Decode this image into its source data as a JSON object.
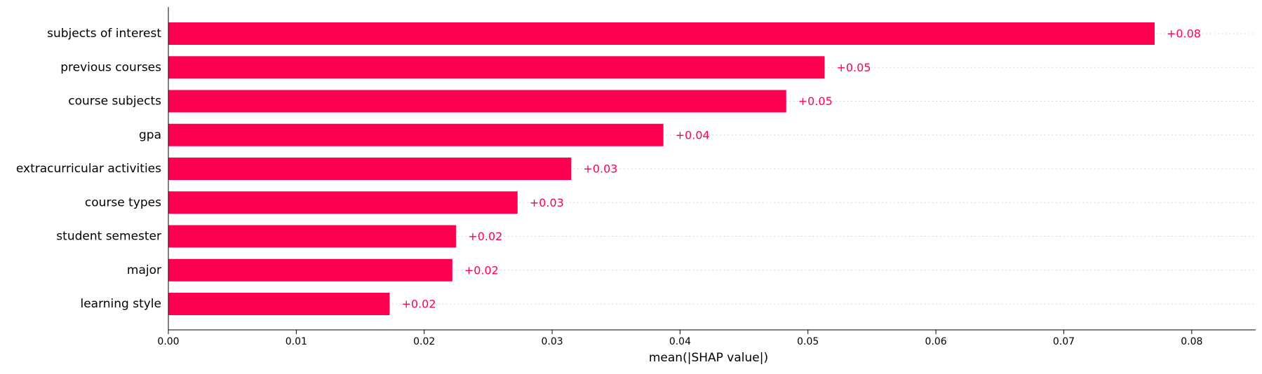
{
  "chart_data": {
    "type": "bar",
    "orientation": "horizontal",
    "title": "",
    "xlabel": "mean(|SHAP value|)",
    "ylabel": "",
    "xlim": [
      0,
      0.085
    ],
    "xticks": [
      0.0,
      0.01,
      0.02,
      0.03,
      0.04,
      0.05,
      0.06,
      0.07,
      0.08
    ],
    "xtick_labels": [
      "0.00",
      "0.01",
      "0.02",
      "0.03",
      "0.04",
      "0.05",
      "0.06",
      "0.07",
      "0.08"
    ],
    "categories": [
      "subjects of interest",
      "previous courses",
      "course subjects",
      "gpa",
      "extracurricular activities",
      "course types",
      "student semester",
      "major",
      "learning style"
    ],
    "values": [
      0.0771,
      0.0513,
      0.0483,
      0.0387,
      0.0315,
      0.0273,
      0.0225,
      0.0222,
      0.0173
    ],
    "value_labels": [
      "+0.08",
      "+0.05",
      "+0.05",
      "+0.04",
      "+0.03",
      "+0.03",
      "+0.02",
      "+0.02",
      "+0.02"
    ],
    "grid": "dotted horizontal guide lines per bar",
    "legend": "none",
    "colors": {
      "bar": "#ff0051",
      "value_label": "#ff0051",
      "axis": "#000000",
      "guide": "#cccccc",
      "text": "#000000"
    }
  }
}
